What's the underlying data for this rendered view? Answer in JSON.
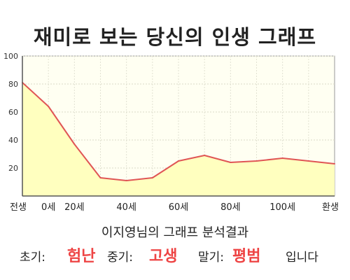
{
  "title": "재미로 보는 당신의 인생 그래프",
  "colors": {
    "line": "#e05555",
    "fill": "#ffffbf",
    "plot_bg": "#fffff2",
    "highlight": "#ee4444"
  },
  "chart_data": {
    "type": "area",
    "x_labels": [
      "전생",
      "0세",
      "20세",
      "40세",
      "60세",
      "80세",
      "100세",
      "환생"
    ],
    "points": [
      {
        "x": "전생",
        "y": 81
      },
      {
        "x": "0세",
        "y": 64
      },
      {
        "x": "20세",
        "y": 37
      },
      {
        "x": "30세",
        "y": 13
      },
      {
        "x": "40세",
        "y": 11
      },
      {
        "x": "50세",
        "y": 13
      },
      {
        "x": "60세",
        "y": 25
      },
      {
        "x": "70세",
        "y": 29
      },
      {
        "x": "80세",
        "y": 24
      },
      {
        "x": "90세",
        "y": 25
      },
      {
        "x": "100세",
        "y": 27
      },
      {
        "x": "110세",
        "y": 25
      },
      {
        "x": "환생",
        "y": 23
      }
    ],
    "y_ticks": [
      20,
      40,
      60,
      80,
      100
    ],
    "ylim": [
      0,
      100
    ],
    "grid": true
  },
  "result": {
    "title": "이지영님의 그래프 분석결과",
    "early_label": "초기:",
    "early_value": "험난",
    "mid_label": "중기:",
    "mid_value": "고생",
    "late_label": "말기:",
    "late_value": "평범",
    "suffix": "입니다"
  }
}
